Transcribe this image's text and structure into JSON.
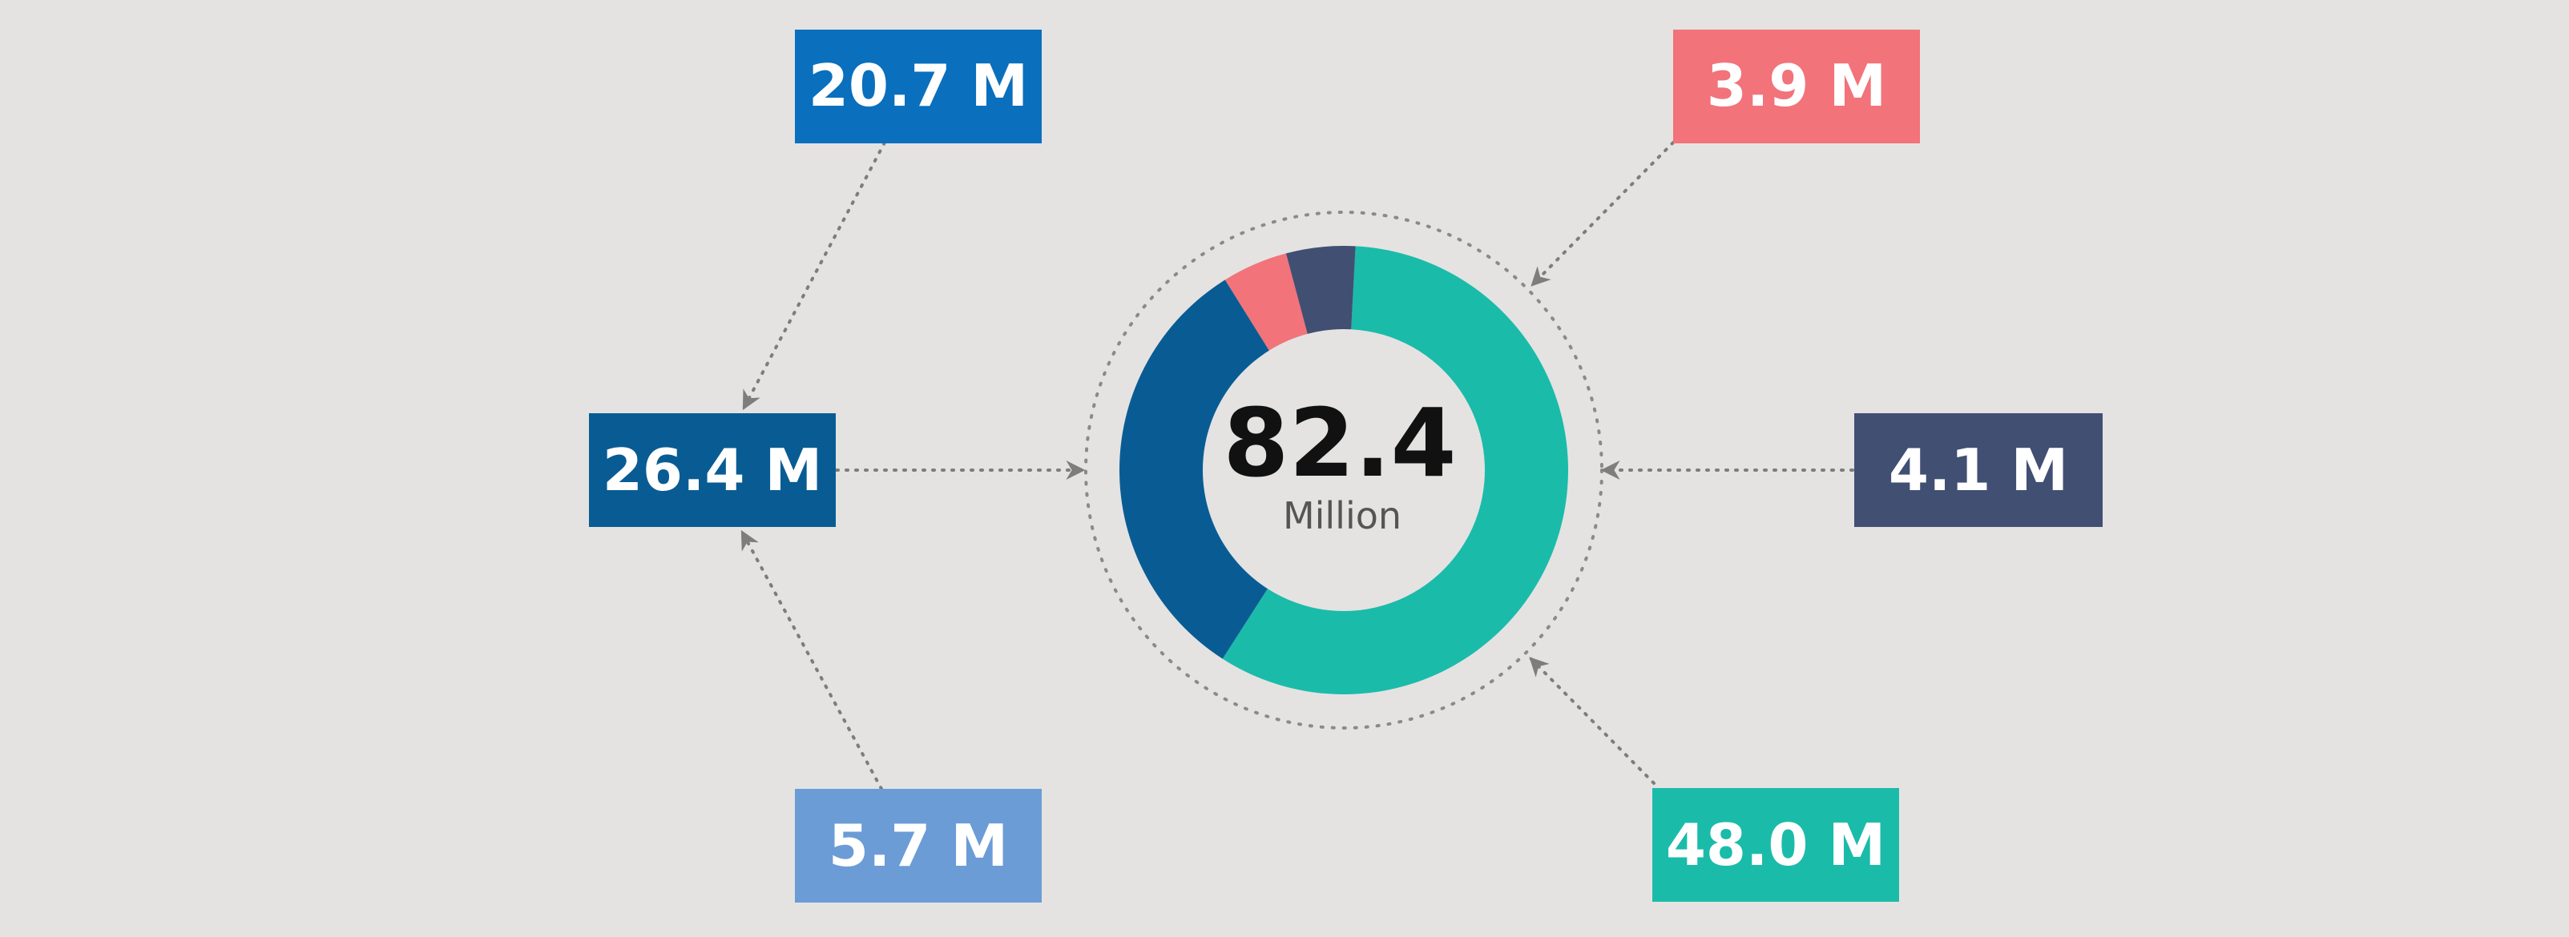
{
  "chart_data": {
    "type": "pie",
    "variant": "donut",
    "total": {
      "value": "82.4",
      "unit": "Million"
    },
    "slices": [
      {
        "key": "teal",
        "value": 48.0,
        "label": "48.0 M",
        "color": "#1bbbaa"
      },
      {
        "key": "blue",
        "value": 26.4,
        "label": "26.4 M",
        "color": "#095c93"
      },
      {
        "key": "pink",
        "value": 3.9,
        "label": "3.9 M",
        "color": "#f2737a"
      },
      {
        "key": "navy",
        "value": 4.1,
        "label": "4.1 M",
        "color": "#414f73"
      }
    ],
    "breakdown": {
      "of": "blue",
      "parts": [
        {
          "key": "dark-blue",
          "value": 20.7,
          "label": "20.7 M",
          "color": "#0a6fbd"
        },
        {
          "key": "light-blue",
          "value": 5.7,
          "label": "5.7 M",
          "color": "#6b9cd6"
        }
      ]
    },
    "connector_color": "#7d7d7d",
    "background": "#e4e3e2"
  }
}
